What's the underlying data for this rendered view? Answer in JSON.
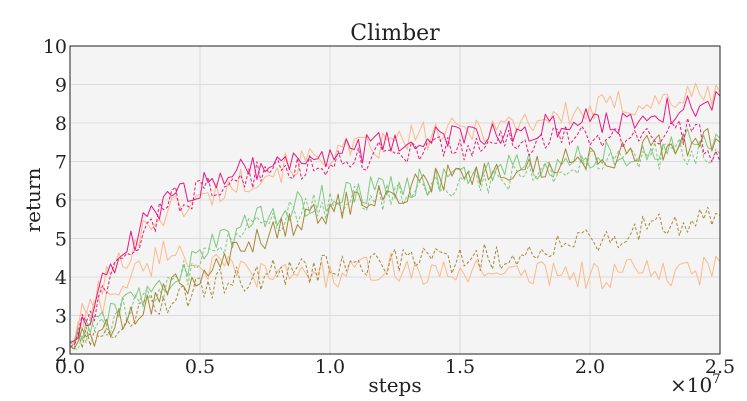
{
  "chart_data": {
    "type": "line",
    "title": "Climber",
    "xlabel": "steps",
    "ylabel": "return",
    "x_multiplier_label": "×10",
    "x_multiplier_exponent": "7",
    "xlim": [
      0.0,
      2.5
    ],
    "ylim": [
      2,
      10
    ],
    "xticks": [
      0.0,
      0.5,
      1.0,
      1.5,
      2.0,
      2.5
    ],
    "xtick_labels": [
      "0.0",
      "0.5",
      "1.0",
      "1.5",
      "2.0",
      "2.5"
    ],
    "yticks": [
      2,
      3,
      4,
      5,
      6,
      7,
      8,
      9,
      10
    ],
    "ytick_labels": [
      "2",
      "3",
      "4",
      "5",
      "6",
      "7",
      "8",
      "9",
      "10"
    ],
    "grid": true,
    "background": "#f4f4f4",
    "series": [
      {
        "color": "#fdb98a",
        "dashed": false,
        "x": [
          0.0,
          0.05,
          0.1,
          0.15,
          0.2,
          0.25,
          0.3,
          0.35,
          0.4,
          0.45,
          0.5,
          0.6,
          0.7,
          0.8,
          0.9,
          1.0,
          1.1,
          1.2,
          1.3,
          1.4,
          1.5,
          1.6,
          1.7,
          1.8,
          1.9,
          2.0,
          2.1,
          2.2,
          2.3,
          2.4,
          2.5
        ],
        "y": [
          2.3,
          3.0,
          3.5,
          4.1,
          4.4,
          4.9,
          5.4,
          5.6,
          5.8,
          5.9,
          6.0,
          6.3,
          6.6,
          6.8,
          7.0,
          7.2,
          7.3,
          7.4,
          7.6,
          7.7,
          7.8,
          7.9,
          8.0,
          8.1,
          8.2,
          8.3,
          8.5,
          8.5,
          8.6,
          8.7,
          8.8
        ]
      },
      {
        "color": "#fdb98a",
        "dashed": false,
        "x": [
          0.0,
          0.05,
          0.1,
          0.15,
          0.2,
          0.25,
          0.3,
          0.35,
          0.4,
          0.45,
          0.5,
          0.6,
          0.7,
          0.8,
          0.9,
          1.0,
          1.1,
          1.2,
          1.3,
          1.4,
          1.5,
          1.6,
          1.7,
          1.8,
          1.9,
          2.0,
          2.1,
          2.2,
          2.3,
          2.4,
          2.5
        ],
        "y": [
          2.3,
          2.8,
          3.2,
          3.5,
          3.8,
          4.1,
          4.3,
          4.6,
          4.8,
          4.5,
          4.3,
          4.2,
          4.1,
          4.0,
          4.2,
          4.0,
          4.1,
          4.3,
          4.2,
          4.0,
          4.1,
          4.3,
          4.0,
          4.1,
          4.2,
          4.0,
          4.1,
          4.2,
          4.0,
          4.1,
          4.4
        ]
      },
      {
        "color": "#e8197d",
        "dashed": false,
        "x": [
          0.0,
          0.05,
          0.1,
          0.15,
          0.2,
          0.25,
          0.3,
          0.35,
          0.4,
          0.45,
          0.5,
          0.6,
          0.7,
          0.8,
          0.9,
          1.0,
          1.1,
          1.2,
          1.3,
          1.4,
          1.5,
          1.6,
          1.7,
          1.8,
          1.9,
          2.0,
          2.1,
          2.2,
          2.3,
          2.4,
          2.5
        ],
        "y": [
          2.3,
          2.9,
          3.3,
          4.2,
          4.5,
          5.0,
          5.5,
          5.9,
          6.1,
          6.2,
          6.3,
          6.8,
          6.9,
          6.9,
          7.1,
          7.2,
          7.3,
          7.4,
          7.5,
          7.6,
          7.7,
          7.6,
          7.8,
          7.8,
          8.0,
          8.1,
          8.0,
          8.2,
          8.3,
          8.4,
          8.7
        ]
      },
      {
        "color": "#e8197d",
        "dashed": true,
        "x": [
          0.0,
          0.05,
          0.1,
          0.15,
          0.2,
          0.25,
          0.3,
          0.35,
          0.4,
          0.45,
          0.5,
          0.6,
          0.7,
          0.8,
          0.9,
          1.0,
          1.1,
          1.2,
          1.3,
          1.4,
          1.5,
          1.6,
          1.7,
          1.8,
          1.9,
          2.0,
          2.1,
          2.2,
          2.3,
          2.4,
          2.5
        ],
        "y": [
          2.2,
          2.7,
          3.2,
          3.8,
          4.3,
          4.8,
          5.3,
          5.7,
          6.0,
          6.1,
          6.2,
          6.4,
          6.6,
          6.8,
          6.9,
          7.0,
          7.1,
          7.2,
          7.3,
          7.3,
          7.4,
          7.4,
          7.5,
          7.5,
          7.6,
          7.6,
          7.7,
          7.7,
          7.7,
          7.8,
          7.0
        ]
      },
      {
        "color": "#7fc97f",
        "dashed": false,
        "x": [
          0.0,
          0.05,
          0.1,
          0.15,
          0.2,
          0.25,
          0.3,
          0.35,
          0.4,
          0.45,
          0.5,
          0.6,
          0.7,
          0.8,
          0.9,
          1.0,
          1.1,
          1.2,
          1.3,
          1.4,
          1.5,
          1.6,
          1.7,
          1.8,
          1.9,
          2.0,
          2.1,
          2.2,
          2.3,
          2.4,
          2.5
        ],
        "y": [
          2.3,
          2.5,
          2.8,
          3.0,
          3.2,
          3.4,
          3.6,
          3.8,
          4.0,
          4.3,
          4.6,
          5.0,
          5.4,
          5.7,
          5.9,
          6.1,
          6.2,
          6.3,
          6.4,
          6.5,
          6.6,
          6.7,
          6.8,
          6.9,
          7.0,
          7.1,
          7.2,
          7.3,
          7.4,
          7.5,
          7.6
        ]
      },
      {
        "color": "#7fc97f",
        "dashed": true,
        "x": [
          0.0,
          0.05,
          0.1,
          0.15,
          0.2,
          0.25,
          0.3,
          0.35,
          0.4,
          0.45,
          0.5,
          0.6,
          0.7,
          0.8,
          0.9,
          1.0,
          1.1,
          1.2,
          1.3,
          1.4,
          1.5,
          1.6,
          1.7,
          1.8,
          1.9,
          2.0,
          2.1,
          2.2,
          2.3,
          2.4,
          2.5
        ],
        "y": [
          2.2,
          2.4,
          2.7,
          2.9,
          3.1,
          3.3,
          3.5,
          3.7,
          3.9,
          4.1,
          4.4,
          4.8,
          5.2,
          5.5,
          5.7,
          5.9,
          6.0,
          6.1,
          6.2,
          6.3,
          6.4,
          6.5,
          6.6,
          6.7,
          6.8,
          6.9,
          7.0,
          7.1,
          7.2,
          7.3,
          7.2
        ]
      },
      {
        "color": "#a58a3a",
        "dashed": false,
        "x": [
          0.0,
          0.05,
          0.1,
          0.15,
          0.2,
          0.25,
          0.3,
          0.35,
          0.4,
          0.45,
          0.5,
          0.6,
          0.7,
          0.8,
          0.9,
          1.0,
          1.1,
          1.2,
          1.3,
          1.4,
          1.5,
          1.6,
          1.7,
          1.8,
          1.9,
          2.0,
          2.1,
          2.2,
          2.3,
          2.4,
          2.5
        ],
        "y": [
          2.2,
          2.3,
          2.5,
          2.7,
          2.9,
          3.1,
          3.3,
          3.5,
          3.7,
          3.9,
          4.1,
          4.5,
          4.9,
          5.2,
          5.5,
          5.8,
          6.0,
          6.2,
          6.3,
          6.5,
          6.6,
          6.7,
          6.8,
          6.9,
          7.0,
          7.1,
          7.2,
          7.3,
          7.4,
          7.5,
          7.5
        ]
      },
      {
        "color": "#a58a3a",
        "dashed": true,
        "x": [
          0.0,
          0.05,
          0.1,
          0.15,
          0.2,
          0.25,
          0.3,
          0.35,
          0.4,
          0.45,
          0.5,
          0.6,
          0.7,
          0.8,
          0.9,
          1.0,
          1.1,
          1.2,
          1.3,
          1.4,
          1.5,
          1.6,
          1.7,
          1.8,
          1.9,
          2.0,
          2.1,
          2.2,
          2.3,
          2.4,
          2.5
        ],
        "y": [
          2.2,
          2.3,
          2.4,
          2.6,
          2.8,
          3.0,
          3.2,
          3.3,
          3.5,
          3.6,
          3.7,
          3.9,
          4.0,
          4.1,
          4.2,
          4.2,
          4.3,
          4.3,
          4.4,
          4.4,
          4.5,
          4.5,
          4.6,
          4.7,
          4.8,
          4.9,
          5.1,
          5.3,
          5.4,
          5.5,
          5.6
        ]
      }
    ]
  }
}
